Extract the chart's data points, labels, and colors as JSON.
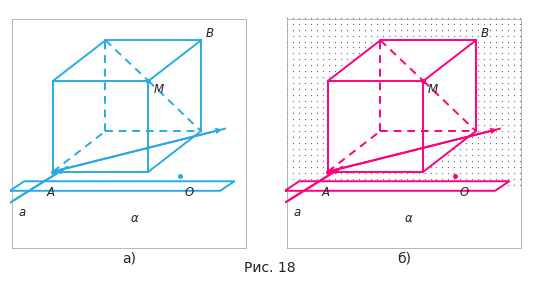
{
  "fig_width": 5.39,
  "fig_height": 2.81,
  "dpi": 100,
  "background_color": "#ffffff",
  "cyan_color": "#29ABE2",
  "magenta_color": "#FF007F",
  "dot_color": "#333333",
  "caption": "Рис. 18",
  "caption_fontsize": 10,
  "label_a": "а)",
  "label_b": "б)",
  "label_fontsize": 10,
  "text_color": "#222222",
  "lw": 1.4
}
